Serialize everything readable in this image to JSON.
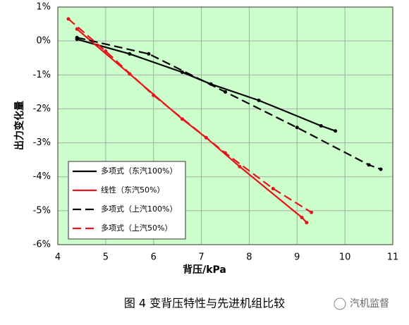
{
  "chart_data": {
    "type": "line",
    "xlabel": "背压/kPa",
    "ylabel": "出力变化量",
    "caption": "图 4  变背压特性与先进机组比较",
    "watermark": "汽机监督",
    "xlim": [
      4,
      11
    ],
    "xticks": [
      4,
      5,
      6,
      7,
      8,
      9,
      10,
      11
    ],
    "ylim": [
      -6,
      1
    ],
    "yticks": [
      {
        "value": -6,
        "label": "-6%"
      },
      {
        "value": -5,
        "label": "-5%"
      },
      {
        "value": -4,
        "label": "-4%"
      },
      {
        "value": -3,
        "label": "-3%"
      },
      {
        "value": -2,
        "label": "-2%"
      },
      {
        "value": -1,
        "label": "-1%"
      },
      {
        "value": 0,
        "label": "0%"
      },
      {
        "value": 1,
        "label": "1%"
      }
    ],
    "grid": true,
    "background": "#ccffcc",
    "legend": "lower-left",
    "series": [
      {
        "name": "多项式（东汽100%）",
        "color": "#000000",
        "style": "solid",
        "x": [
          4.4,
          5.5,
          6.6,
          7.2,
          8.2,
          9.5,
          9.8
        ],
        "values": [
          0.05,
          -0.38,
          -0.92,
          -1.27,
          -1.75,
          -2.5,
          -2.65
        ]
      },
      {
        "name": "线性（东汽50%）",
        "color": "#e8141b",
        "style": "solid",
        "x": [
          4.4,
          5.5,
          6.6,
          7.1,
          7.8,
          9.1,
          9.2
        ],
        "values": [
          0.35,
          -0.97,
          -2.3,
          -2.85,
          -3.7,
          -5.2,
          -5.35
        ]
      },
      {
        "name": "多项式（上汽100%）",
        "color": "#000000",
        "style": "dashed",
        "x": [
          4.4,
          5.9,
          7.5,
          9,
          10.5,
          10.75
        ],
        "values": [
          0.1,
          -0.38,
          -1.5,
          -2.55,
          -3.65,
          -3.78
        ]
      },
      {
        "name": "多项式（上汽50%）",
        "color": "#e8141b",
        "style": "dashed",
        "x": [
          4.22,
          5,
          6,
          7.5,
          8.5,
          9.3
        ],
        "values": [
          0.65,
          -0.3,
          -1.6,
          -3.3,
          -4.35,
          -5.05
        ]
      }
    ]
  }
}
